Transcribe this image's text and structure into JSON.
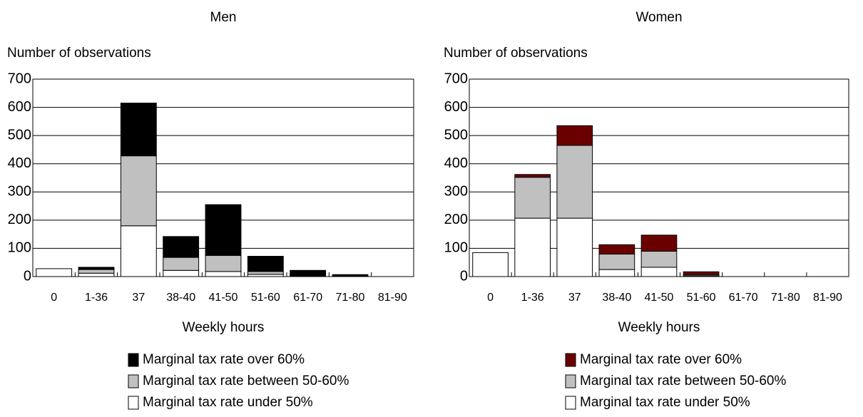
{
  "chart_data": [
    {
      "type": "bar",
      "stacked": true,
      "title": "Men",
      "y_label": "Number of observations",
      "x_label": "Weekly hours",
      "categories": [
        "0",
        "1-36",
        "37",
        "38-40",
        "41-50",
        "51-60",
        "61-70",
        "71-80",
        "81-90"
      ],
      "series": [
        {
          "name": "Marginal tax rate under 50%",
          "color": "#ffffff",
          "values": [
            28,
            12,
            180,
            22,
            18,
            8,
            2,
            1,
            0
          ]
        },
        {
          "name": "Marginal tax rate between 50-60%",
          "color": "#c0c0c0",
          "values": [
            0,
            13,
            248,
            46,
            57,
            10,
            0,
            0,
            0
          ]
        },
        {
          "name": "Marginal tax rate over 60%",
          "color": "#000000",
          "values": [
            0,
            8,
            187,
            74,
            180,
            54,
            20,
            6,
            0
          ]
        }
      ],
      "ylim": [
        0,
        700
      ],
      "yticks": [
        0,
        100,
        200,
        300,
        400,
        500,
        600,
        700
      ],
      "grid": true
    },
    {
      "type": "bar",
      "stacked": true,
      "title": "Women",
      "y_label": "Number of observations",
      "x_label": "Weekly hours",
      "categories": [
        "0",
        "1-36",
        "37",
        "38-40",
        "41-50",
        "51-60",
        "61-70",
        "71-80",
        "81-90"
      ],
      "series": [
        {
          "name": "Marginal tax rate under 50%",
          "color": "#ffffff",
          "values": [
            85,
            207,
            207,
            25,
            33,
            3,
            0,
            0,
            0
          ]
        },
        {
          "name": "Marginal tax rate between 50-60%",
          "color": "#c0c0c0",
          "values": [
            0,
            145,
            258,
            55,
            57,
            4,
            0,
            0,
            0
          ]
        },
        {
          "name": "Marginal tax rate over 60%",
          "color": "#6b0000",
          "values": [
            0,
            10,
            70,
            33,
            57,
            10,
            0,
            0,
            0
          ]
        }
      ],
      "ylim": [
        0,
        700
      ],
      "yticks": [
        0,
        100,
        200,
        300,
        400,
        500,
        600,
        700
      ],
      "grid": true
    }
  ]
}
